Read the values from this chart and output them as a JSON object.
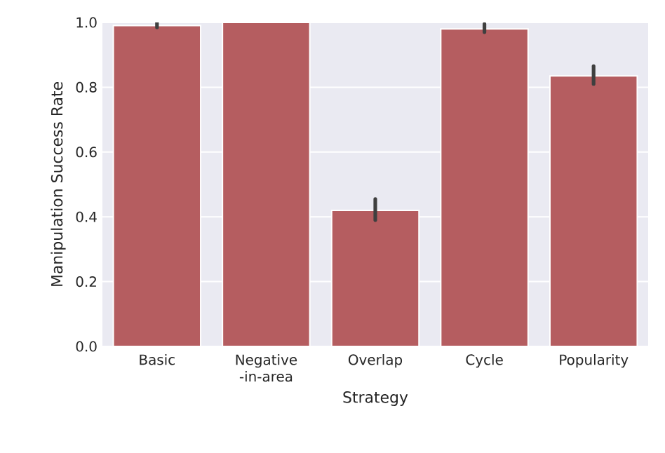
{
  "chart_data": {
    "type": "bar",
    "xlabel": "Strategy",
    "ylabel": "Manipulation Success Rate",
    "categories": [
      "Basic",
      "Negative -in-area",
      "Overlap",
      "Cycle",
      "Popularity"
    ],
    "values": [
      0.99,
      1.0,
      0.42,
      0.98,
      0.835
    ],
    "errors": [
      [
        0.985,
        1.0
      ],
      null,
      [
        0.39,
        0.455
      ],
      [
        0.97,
        0.995
      ],
      [
        0.81,
        0.865
      ]
    ],
    "color": "#b55d60",
    "ylim": [
      0,
      1.0
    ],
    "yticks": [
      {
        "value": 0,
        "label": "0.0"
      },
      0.2,
      0.4,
      0.6,
      0.8,
      {
        "value": 1.0,
        "label": "1.0"
      }
    ],
    "grid": "y"
  }
}
